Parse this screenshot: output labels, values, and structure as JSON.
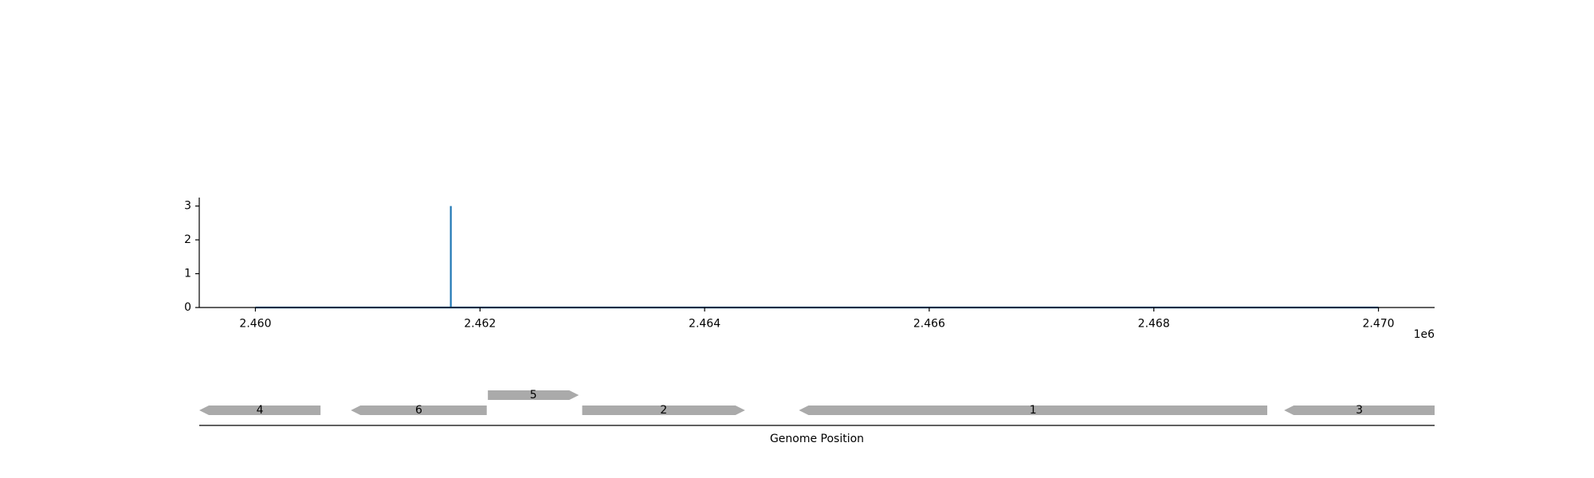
{
  "chart_data": [
    {
      "type": "line",
      "title": "",
      "xlabel": "",
      "ylabel": "",
      "x_offset_label": "1e6",
      "x_tick_values": [
        2460000,
        2462000,
        2464000,
        2466000,
        2468000,
        2470000
      ],
      "x_tick_labels": [
        "2.460",
        "2.462",
        "2.464",
        "2.466",
        "2.468",
        "2.470"
      ],
      "y_tick_values": [
        0,
        1,
        2,
        3
      ],
      "y_tick_labels": [
        "0",
        "1",
        "2",
        "3"
      ],
      "xlim": [
        2459500,
        2470500
      ],
      "ylim": [
        0,
        3.25
      ],
      "grid": false,
      "series": [
        {
          "color": "#1f77b4",
          "x": [
            2460000,
            2461740,
            2461740,
            2461740,
            2470000
          ],
          "y": [
            0,
            0,
            3,
            0,
            0
          ]
        }
      ]
    },
    {
      "type": "gene-track",
      "xlabel": "Genome Position",
      "xlim": [
        2459500,
        2470500
      ],
      "gene_color": "#aaaaaa",
      "genes": [
        {
          "label": "4",
          "start": 2459500,
          "end": 2460580,
          "strand": "-",
          "row": 0
        },
        {
          "label": "6",
          "start": 2460850,
          "end": 2462060,
          "strand": "-",
          "row": 0
        },
        {
          "label": "5",
          "start": 2462070,
          "end": 2462880,
          "strand": "+",
          "row": 1
        },
        {
          "label": "2",
          "start": 2462910,
          "end": 2464360,
          "strand": "+",
          "row": 0
        },
        {
          "label": "1",
          "start": 2464840,
          "end": 2469010,
          "strand": "-",
          "row": 0
        },
        {
          "label": "3",
          "start": 2469160,
          "end": 2470500,
          "strand": "-",
          "row": 0
        }
      ]
    }
  ]
}
